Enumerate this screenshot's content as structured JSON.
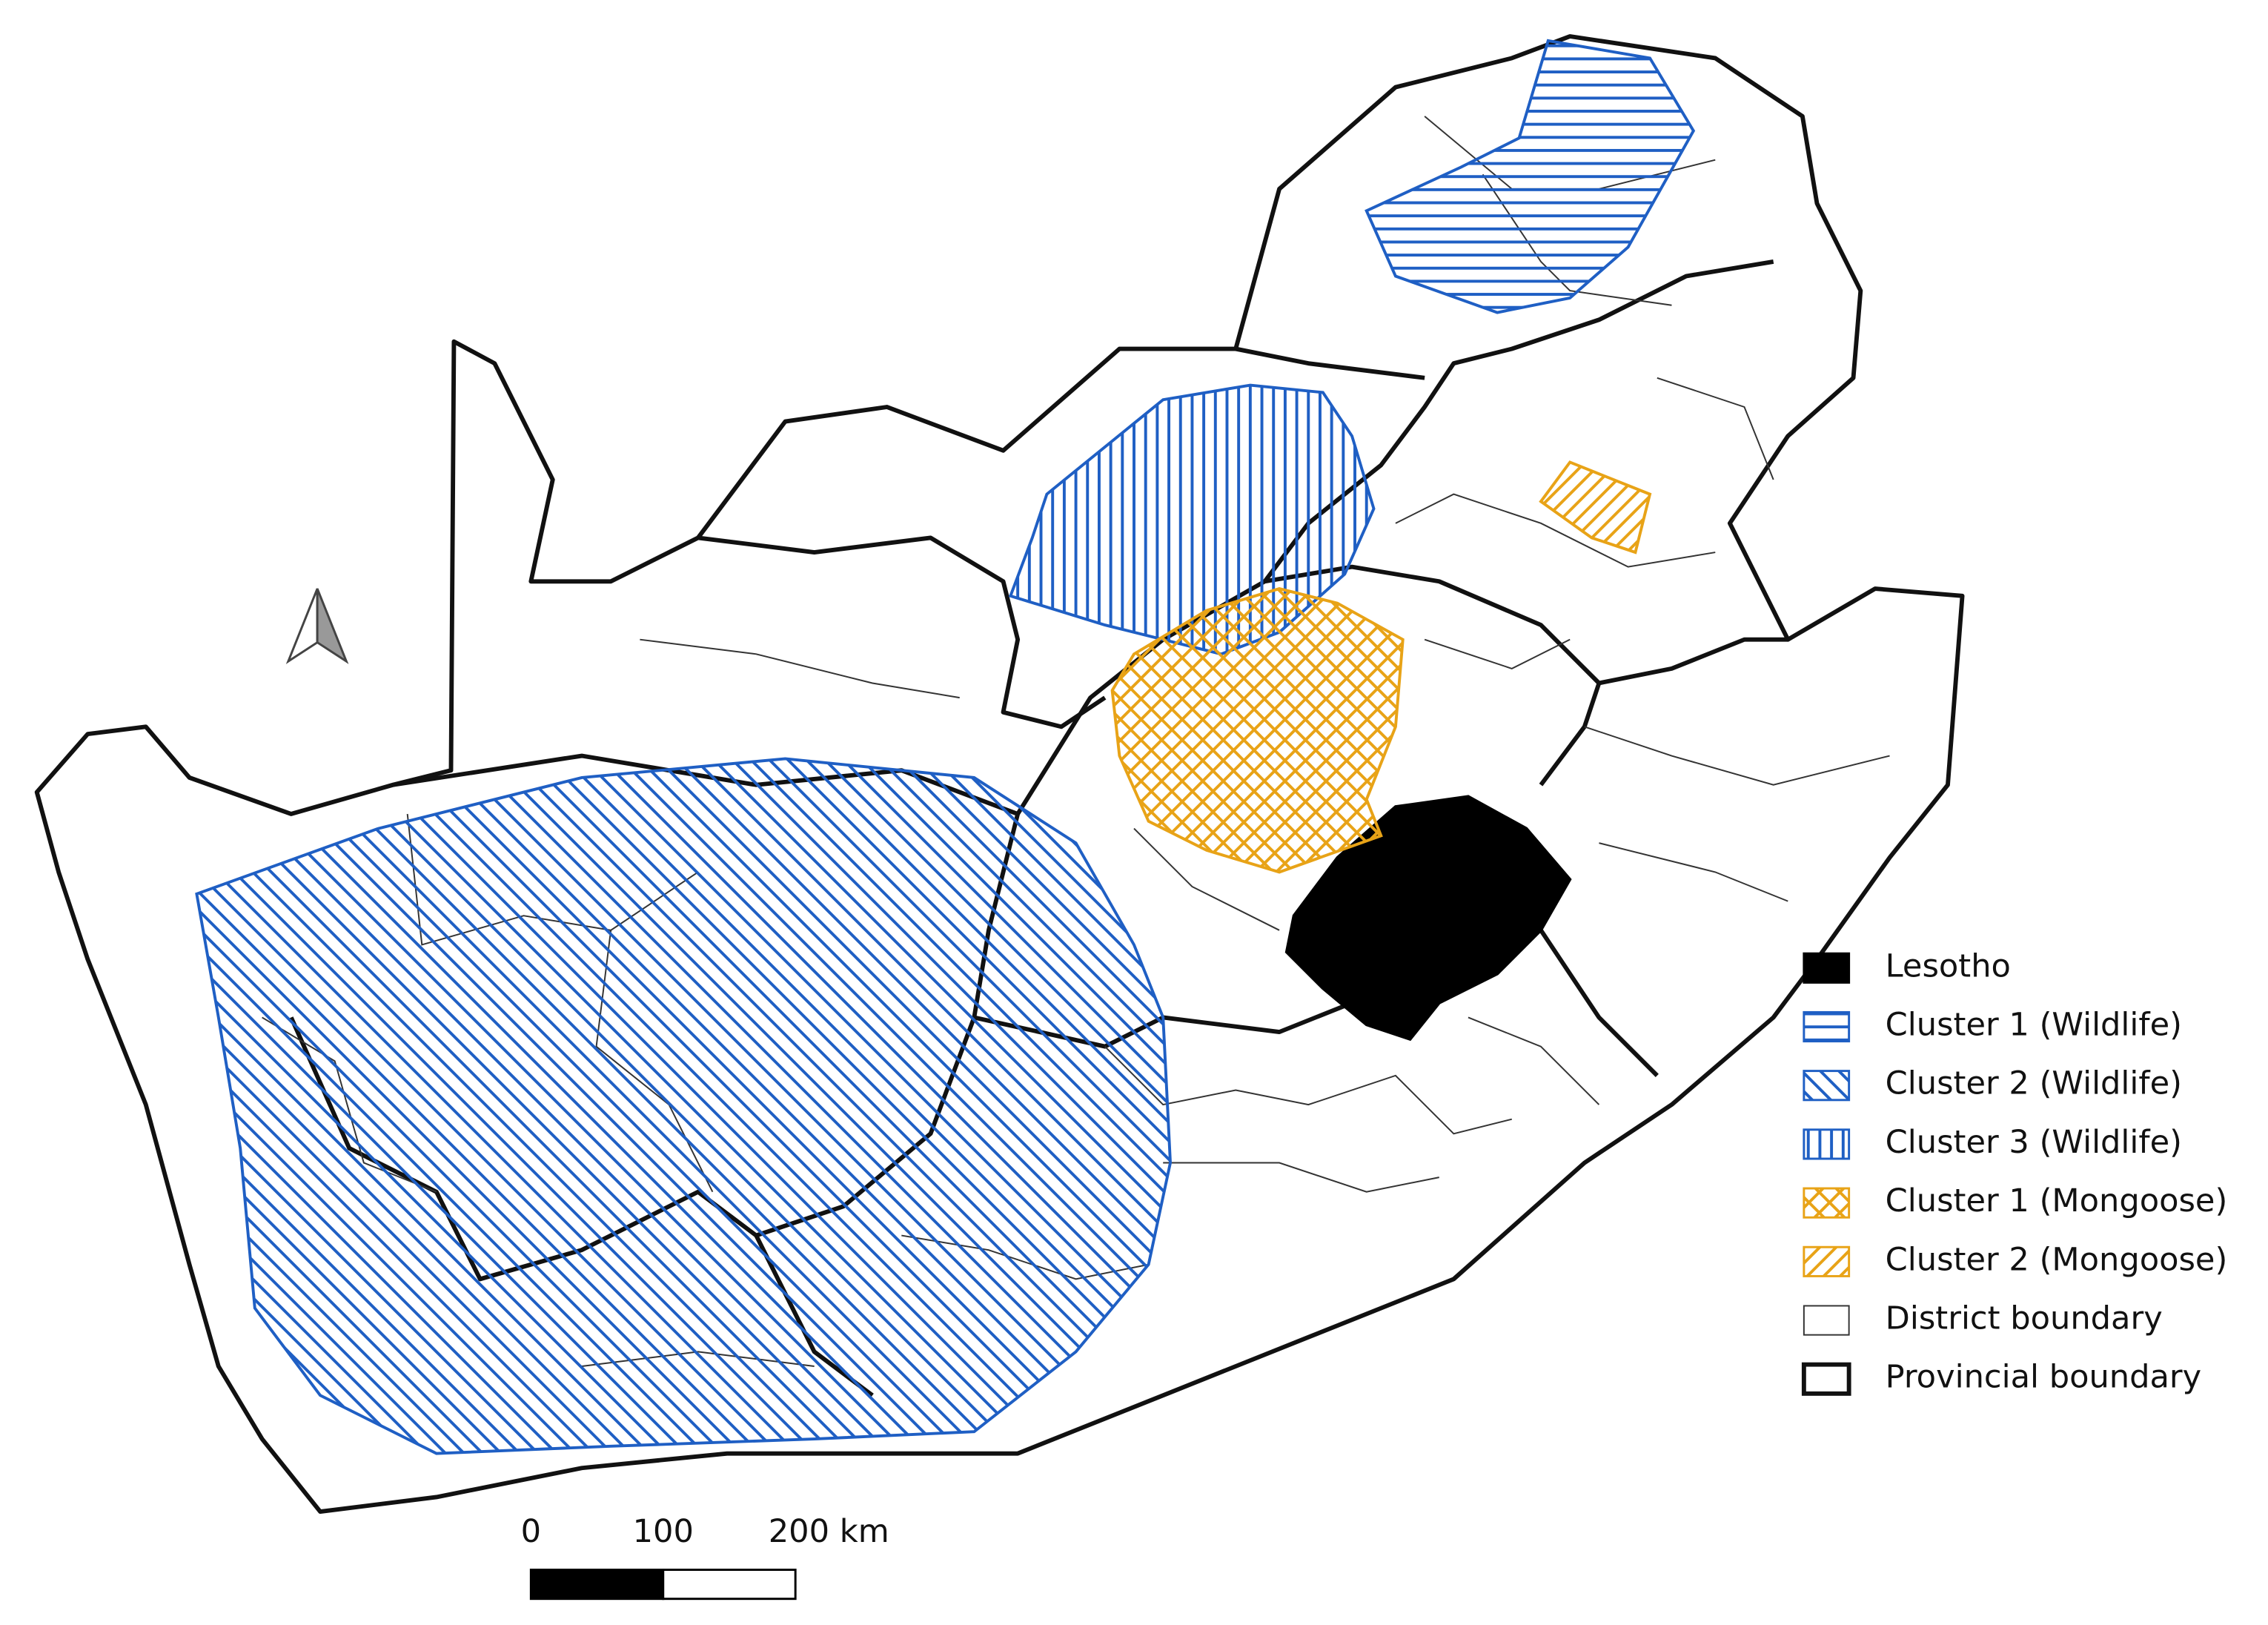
{
  "legend": {
    "items": [
      {
        "label": "Lesotho"
      },
      {
        "label": "Cluster 1 (Wildlife)"
      },
      {
        "label": "Cluster 2 (Wildlife)"
      },
      {
        "label": "Cluster 3 (Wildlife)"
      },
      {
        "label": "Cluster 1 (Mongoose)"
      },
      {
        "label": "Cluster 2 (Mongoose)"
      },
      {
        "label": "District boundary"
      },
      {
        "label": "Provincial boundary"
      }
    ]
  },
  "scale_bar": {
    "labels": [
      "0",
      "100",
      "200 km"
    ]
  }
}
